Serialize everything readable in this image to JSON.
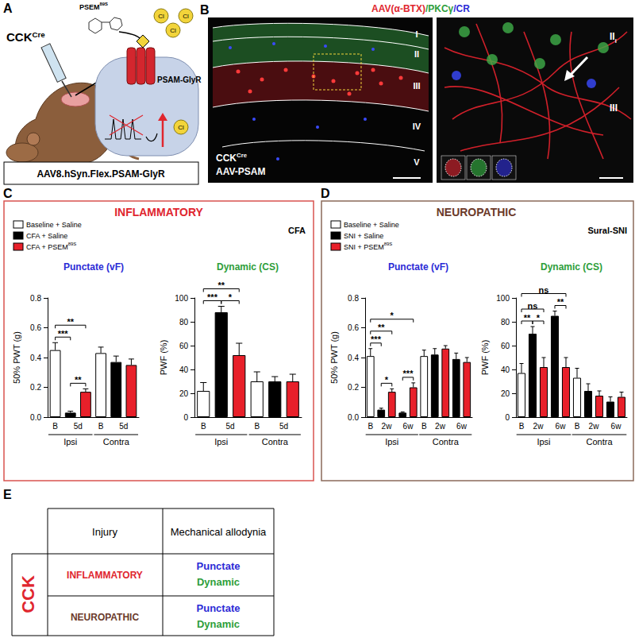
{
  "panel_a": {
    "label": "A",
    "mouse_line": {
      "text": "CCK",
      "sup": "Cre"
    },
    "ligand": {
      "text": "PSEM",
      "sup": "89S"
    },
    "ions": [
      "Cl",
      "Cl",
      "Cl",
      "Cl"
    ],
    "receptor": "PSAM-GlyR",
    "vector": "AAV8.hSyn.Flex.PSAM-GlyR"
  },
  "panel_b": {
    "label": "B",
    "stains": [
      "AAV(α-BTX)",
      "/PKCγ",
      "/CR"
    ],
    "laminae": [
      "I",
      "II",
      "III",
      "IV",
      "V"
    ],
    "mouse_line": {
      "text": "CCK",
      "sup": "Cre"
    },
    "vector": "AAV-PSAM",
    "inset_laminae": [
      {
        "text": "II",
        "sub": "i"
      },
      {
        "text": "III"
      }
    ]
  },
  "panel_c": {
    "label": "C",
    "title": "INFLAMMATORY",
    "model": "CFA",
    "legend": [
      {
        "name": "Baseline + Saline",
        "color": "#ffffff"
      },
      {
        "name": "CFA + Saline",
        "color": "#000000"
      },
      {
        "name": "CFA + PSEM",
        "sup": "89S",
        "color": "#e8202a"
      }
    ]
  },
  "panel_d": {
    "label": "D",
    "title": "NEUROPATHIC",
    "model": "Sural-SNI",
    "legend": [
      {
        "name": "Baseline + Saline",
        "color": "#ffffff"
      },
      {
        "name": "SNI + Saline",
        "color": "#000000"
      },
      {
        "name": "SNI + PSEM",
        "sup": "89S",
        "color": "#e8202a"
      }
    ]
  },
  "panel_e": {
    "label": "E",
    "header": [
      "Injury",
      "Mechanical allodynia"
    ],
    "group": "CCK",
    "rows": [
      {
        "injury": "INFLAMMATORY",
        "allodynia": [
          "Punctate",
          "Dynamic"
        ]
      },
      {
        "injury": "NEUROPATHIC",
        "allodynia": [
          "Punctate",
          "Dynamic"
        ]
      }
    ]
  },
  "chart_data": [
    {
      "type": "bar",
      "title": "Punctate (vF)",
      "ylabel": "50% PWT (g)",
      "categories": [
        "B",
        "5d",
        null,
        "B",
        "5d",
        null
      ],
      "values": [
        0.45,
        0.03,
        0.17,
        0.43,
        0.37,
        0.35
      ],
      "errors": [
        0.05,
        0.01,
        0.02,
        0.04,
        0.04,
        0.04
      ],
      "colors": [
        "#ffffff",
        "#000000",
        "#e8202a",
        "#ffffff",
        "#000000",
        "#e8202a"
      ],
      "x_groups": [
        {
          "label": "Ipsi",
          "from": 0,
          "to": 2
        },
        {
          "label": "Contra",
          "from": 3,
          "to": 5
        }
      ],
      "annotations": [
        {
          "from": 0,
          "to": 1,
          "label": "***"
        },
        {
          "from": 1,
          "to": 2,
          "label": "**"
        },
        {
          "from": 0,
          "to": 2,
          "label": "**"
        }
      ],
      "ylim": [
        0,
        0.8
      ],
      "yticks": [
        {
          "value": 0,
          "label": "0.0"
        },
        0.2,
        0.4,
        0.6,
        0.8
      ],
      "grid": false
    },
    {
      "type": "bar",
      "title": "Dynamic (CS)",
      "ylabel": "PWF (%)",
      "categories": [
        "B",
        "5d",
        null,
        "B",
        "5d",
        null
      ],
      "values": [
        22,
        88,
        52,
        30,
        30,
        30
      ],
      "errors": [
        7,
        5,
        10,
        8,
        4,
        6
      ],
      "colors": [
        "#ffffff",
        "#000000",
        "#e8202a",
        "#ffffff",
        "#000000",
        "#e8202a"
      ],
      "x_groups": [
        {
          "label": "Ipsi",
          "from": 0,
          "to": 2
        },
        {
          "label": "Contra",
          "from": 3,
          "to": 5
        }
      ],
      "annotations": [
        {
          "from": 0,
          "to": 1,
          "label": "***"
        },
        {
          "from": 1,
          "to": 2,
          "label": "*"
        },
        {
          "from": 0,
          "to": 2,
          "label": "**"
        }
      ],
      "ylim": [
        0,
        100
      ],
      "yticks": [
        0,
        20,
        40,
        60,
        80,
        100
      ],
      "grid": false
    },
    {
      "type": "bar",
      "title": "Punctate (vF)",
      "ylabel": "50% PWT (g)",
      "categories": [
        "B",
        "2w",
        null,
        "6w",
        null,
        "B",
        "2w",
        null,
        "6w",
        null
      ],
      "values": [
        0.41,
        0.05,
        0.17,
        0.03,
        0.2,
        0.41,
        0.42,
        0.46,
        0.39,
        0.37
      ],
      "errors": [
        0.05,
        0.01,
        0.02,
        0.005,
        0.03,
        0.04,
        0.04,
        0.02,
        0.04,
        0.03
      ],
      "colors": [
        "#ffffff",
        "#000000",
        "#e8202a",
        "#000000",
        "#e8202a",
        "#ffffff",
        "#000000",
        "#e8202a",
        "#000000",
        "#e8202a"
      ],
      "x_groups": [
        {
          "label": "Ipsi",
          "from": 0,
          "to": 4
        },
        {
          "label": "Contra",
          "from": 5,
          "to": 9
        }
      ],
      "annotations": [
        {
          "from": 0,
          "to": 1,
          "label": "***"
        },
        {
          "from": 1,
          "to": 2,
          "label": "*"
        },
        {
          "from": 3,
          "to": 4,
          "label": "***"
        },
        {
          "from": 0,
          "to": 2,
          "label": "**"
        },
        {
          "from": 0,
          "to": 4,
          "label": "*"
        }
      ],
      "ylim": [
        0,
        0.8
      ],
      "yticks": [
        {
          "value": 0,
          "label": "0.0"
        },
        0.2,
        0.4,
        0.6,
        0.8
      ],
      "grid": false
    },
    {
      "type": "bar",
      "title": "Dynamic (CS)",
      "ylabel": "PWF (%)",
      "categories": [
        "B",
        "2w",
        null,
        "6w",
        null,
        "B",
        "2w",
        null,
        "6w",
        null
      ],
      "values": [
        37,
        70,
        42,
        85,
        42,
        33,
        22,
        18,
        13,
        17
      ],
      "errors": [
        8,
        6,
        8,
        4,
        8,
        8,
        6,
        4,
        4,
        4
      ],
      "colors": [
        "#ffffff",
        "#000000",
        "#e8202a",
        "#000000",
        "#e8202a",
        "#ffffff",
        "#000000",
        "#e8202a",
        "#000000",
        "#e8202a"
      ],
      "x_groups": [
        {
          "label": "Ipsi",
          "from": 0,
          "to": 4
        },
        {
          "label": "Contra",
          "from": 5,
          "to": 9
        }
      ],
      "annotations": [
        {
          "from": 0,
          "to": 1,
          "label": "**"
        },
        {
          "from": 1,
          "to": 2,
          "label": "*"
        },
        {
          "from": 3,
          "to": 4,
          "label": "**"
        },
        {
          "from": 0,
          "to": 2,
          "label": "ns"
        },
        {
          "from": 0,
          "to": 4,
          "label": "ns"
        }
      ],
      "ylim": [
        0,
        100
      ],
      "yticks": [
        0,
        20,
        40,
        60,
        80,
        100
      ],
      "grid": false
    }
  ]
}
